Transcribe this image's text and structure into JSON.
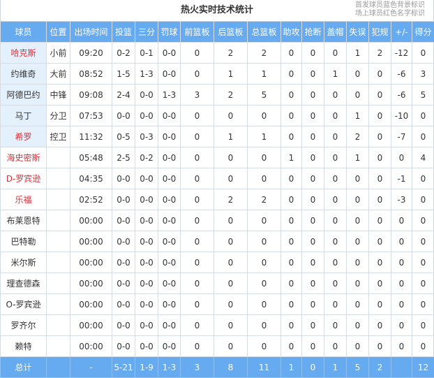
{
  "title": "热火实时技术统计",
  "legend": [
    "首发球员蓝色背景标识",
    "场上球员红色名字标识"
  ],
  "colors": {
    "header_bg": "#66aaf0",
    "starter_bg": "#e4f0fc",
    "on_court_name": "#d8313a"
  },
  "columns": [
    "球员",
    "位置",
    "出场时间",
    "投篮",
    "三分",
    "罚球",
    "前篮板",
    "后篮板",
    "总篮板",
    "助攻",
    "抢断",
    "盖帽",
    "失误",
    "犯规",
    "+/-",
    "得分"
  ],
  "players": [
    {
      "name": "哈克斯",
      "pos": "小前",
      "starter": true,
      "on_court": true,
      "stats": [
        "09:20",
        "0-2",
        "0-1",
        "0-0",
        "0",
        "2",
        "2",
        "0",
        "0",
        "0",
        "1",
        "2",
        "-12",
        "0"
      ]
    },
    {
      "name": "约维奇",
      "pos": "大前",
      "starter": true,
      "on_court": false,
      "stats": [
        "08:52",
        "1-5",
        "1-3",
        "0-0",
        "0",
        "1",
        "1",
        "0",
        "0",
        "1",
        "0",
        "0",
        "-6",
        "3"
      ]
    },
    {
      "name": "阿德巴约",
      "pos": "中锋",
      "starter": true,
      "on_court": false,
      "stats": [
        "09:08",
        "2-4",
        "0-0",
        "1-3",
        "3",
        "2",
        "5",
        "0",
        "0",
        "0",
        "0",
        "0",
        "-6",
        "5"
      ]
    },
    {
      "name": "马丁",
      "pos": "分卫",
      "starter": true,
      "on_court": false,
      "stats": [
        "07:53",
        "0-0",
        "0-0",
        "0-0",
        "0",
        "0",
        "0",
        "0",
        "0",
        "0",
        "1",
        "0",
        "-10",
        "0"
      ]
    },
    {
      "name": "希罗",
      "pos": "控卫",
      "starter": true,
      "on_court": true,
      "stats": [
        "11:32",
        "0-5",
        "0-3",
        "0-0",
        "0",
        "1",
        "1",
        "0",
        "0",
        "0",
        "2",
        "0",
        "-7",
        "0"
      ]
    },
    {
      "name": "海史密斯",
      "pos": "",
      "starter": false,
      "on_court": true,
      "stats": [
        "05:48",
        "2-5",
        "0-2",
        "0-0",
        "0",
        "0",
        "0",
        "1",
        "0",
        "0",
        "1",
        "0",
        "0",
        "4"
      ]
    },
    {
      "name": "D-罗宾逊",
      "pos": "",
      "starter": false,
      "on_court": true,
      "stats": [
        "04:35",
        "0-0",
        "0-0",
        "0-0",
        "0",
        "0",
        "0",
        "0",
        "0",
        "0",
        "0",
        "0",
        "-1",
        "0"
      ]
    },
    {
      "name": "乐福",
      "pos": "",
      "starter": false,
      "on_court": true,
      "stats": [
        "02:52",
        "0-0",
        "0-0",
        "0-0",
        "0",
        "2",
        "2",
        "0",
        "0",
        "0",
        "0",
        "0",
        "-3",
        "0"
      ]
    },
    {
      "name": "布莱恩特",
      "pos": "",
      "starter": false,
      "on_court": false,
      "stats": [
        "00:00",
        "0-0",
        "0-0",
        "0-0",
        "0",
        "0",
        "0",
        "0",
        "0",
        "0",
        "0",
        "0",
        "0",
        "0"
      ]
    },
    {
      "name": "巴特勒",
      "pos": "",
      "starter": false,
      "on_court": false,
      "stats": [
        "00:00",
        "0-0",
        "0-0",
        "0-0",
        "0",
        "0",
        "0",
        "0",
        "0",
        "0",
        "0",
        "0",
        "0",
        "0"
      ]
    },
    {
      "name": "米尔斯",
      "pos": "",
      "starter": false,
      "on_court": false,
      "stats": [
        "00:00",
        "0-0",
        "0-0",
        "0-0",
        "0",
        "0",
        "0",
        "0",
        "0",
        "0",
        "0",
        "0",
        "0",
        "0"
      ]
    },
    {
      "name": "理查德森",
      "pos": "",
      "starter": false,
      "on_court": false,
      "stats": [
        "00:00",
        "0-0",
        "0-0",
        "0-0",
        "0",
        "0",
        "0",
        "0",
        "0",
        "0",
        "0",
        "0",
        "0",
        "0"
      ]
    },
    {
      "name": "O-罗宾逊",
      "pos": "",
      "starter": false,
      "on_court": false,
      "stats": [
        "00:00",
        "0-0",
        "0-0",
        "0-0",
        "0",
        "0",
        "0",
        "0",
        "0",
        "0",
        "0",
        "0",
        "0",
        "0"
      ]
    },
    {
      "name": "罗齐尔",
      "pos": "",
      "starter": false,
      "on_court": false,
      "stats": [
        "00:00",
        "0-0",
        "0-0",
        "0-0",
        "0",
        "0",
        "0",
        "0",
        "0",
        "0",
        "0",
        "0",
        "0",
        "0"
      ]
    },
    {
      "name": "赖特",
      "pos": "",
      "starter": false,
      "on_court": false,
      "stats": [
        "00:00",
        "0-0",
        "0-0",
        "0-0",
        "0",
        "0",
        "0",
        "0",
        "0",
        "0",
        "0",
        "0",
        "0",
        "0"
      ]
    }
  ],
  "total": {
    "label": "总计",
    "pos": "",
    "stats": [
      "-",
      "5-21",
      "1-9",
      "1-3",
      "3",
      "8",
      "11",
      "1",
      "0",
      "1",
      "5",
      "2",
      "",
      "12"
    ]
  }
}
